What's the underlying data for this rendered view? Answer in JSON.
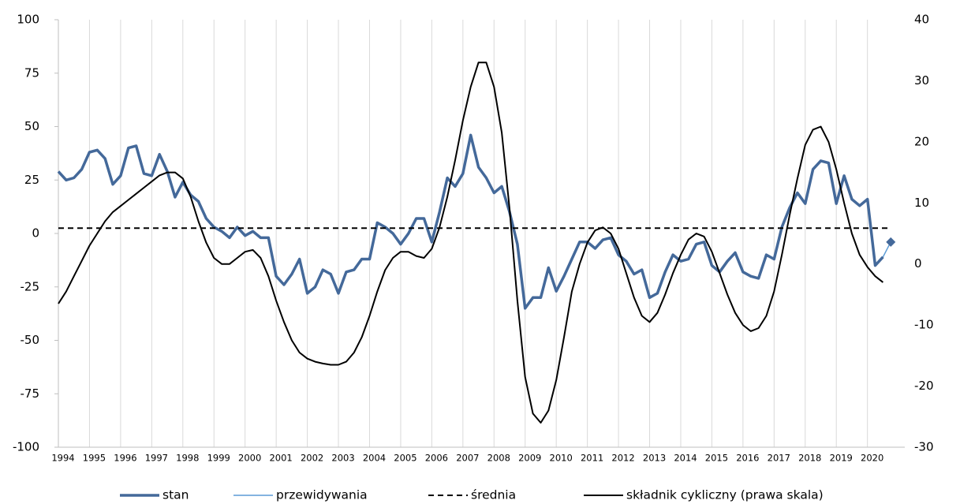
{
  "chart_data": {
    "type": "line",
    "x": [
      1994,
      1994.25,
      1994.5,
      1994.75,
      1995,
      1995.25,
      1995.5,
      1995.75,
      1996,
      1996.25,
      1996.5,
      1996.75,
      1997,
      1997.25,
      1997.5,
      1997.75,
      1998,
      1998.25,
      1998.5,
      1998.75,
      1999,
      1999.25,
      1999.5,
      1999.75,
      2000,
      2000.25,
      2000.5,
      2000.75,
      2001,
      2001.25,
      2001.5,
      2001.75,
      2002,
      2002.25,
      2002.5,
      2002.75,
      2003,
      2003.25,
      2003.5,
      2003.75,
      2004,
      2004.25,
      2004.5,
      2004.75,
      2005,
      2005.25,
      2005.5,
      2005.75,
      2006,
      2006.25,
      2006.5,
      2006.75,
      2007,
      2007.25,
      2007.5,
      2007.75,
      2008,
      2008.25,
      2008.5,
      2008.75,
      2009,
      2009.25,
      2009.5,
      2009.75,
      2010,
      2010.25,
      2010.5,
      2010.75,
      2011,
      2011.25,
      2011.5,
      2011.75,
      2012,
      2012.25,
      2012.5,
      2012.75,
      2013,
      2013.25,
      2013.5,
      2013.75,
      2014,
      2014.25,
      2014.5,
      2014.75,
      2015,
      2015.25,
      2015.5,
      2015.75,
      2016,
      2016.25,
      2016.5,
      2016.75,
      2017,
      2017.25,
      2017.5,
      2017.75,
      2018,
      2018.25,
      2018.5,
      2018.75,
      2019,
      2019.25,
      2019.5,
      2019.75,
      2020,
      2020.25,
      2020.5,
      2020.75
    ],
    "series": [
      {
        "name": "stan",
        "color": "#44699a",
        "width": 3.5,
        "axis": "y",
        "values": [
          29,
          25,
          26,
          30,
          38,
          39,
          35,
          23,
          27,
          40,
          41,
          28,
          27,
          37,
          29,
          17,
          24,
          18,
          15,
          7,
          3,
          1,
          -2,
          3,
          -1,
          1,
          -2,
          -2,
          -20,
          -24,
          -19,
          -12,
          -28,
          -25,
          -17,
          -19,
          -28,
          -18,
          -17,
          -12,
          -12,
          5,
          3,
          0,
          -5,
          0,
          7,
          7,
          -4,
          10,
          26,
          22,
          28,
          46,
          31,
          26,
          19,
          22,
          10,
          -5,
          -35,
          -30,
          -30,
          -16,
          -27,
          -20,
          -12,
          -4,
          -4,
          -7,
          -3,
          -2,
          -10,
          -13,
          -19,
          -17,
          -30,
          -28,
          -18,
          -10,
          -13,
          -12,
          -5,
          -4,
          -15,
          -18,
          -13,
          -9,
          -18,
          -20,
          -21,
          -10,
          -12,
          3,
          12,
          19,
          14,
          30,
          34,
          33,
          14,
          27,
          16,
          13,
          16,
          -15,
          -11,
          null
        ]
      },
      {
        "name": "przewidywania",
        "color": "#5b9bd5",
        "width": 1.5,
        "axis": "y",
        "marker": "diamond",
        "values": [
          null,
          null,
          null,
          null,
          null,
          null,
          null,
          null,
          null,
          null,
          null,
          null,
          null,
          null,
          null,
          null,
          null,
          null,
          null,
          null,
          null,
          null,
          null,
          null,
          null,
          null,
          null,
          null,
          null,
          null,
          null,
          null,
          null,
          null,
          null,
          null,
          null,
          null,
          null,
          null,
          null,
          null,
          null,
          null,
          null,
          null,
          null,
          null,
          null,
          null,
          null,
          null,
          null,
          null,
          null,
          null,
          null,
          null,
          null,
          null,
          null,
          null,
          null,
          null,
          null,
          null,
          null,
          null,
          null,
          null,
          null,
          null,
          null,
          null,
          null,
          null,
          null,
          null,
          null,
          null,
          null,
          null,
          null,
          null,
          null,
          null,
          null,
          null,
          null,
          null,
          null,
          null,
          null,
          null,
          null,
          null,
          null,
          null,
          null,
          null,
          null,
          null,
          null,
          null,
          null,
          null,
          -11,
          -4
        ]
      },
      {
        "name": "średnia",
        "color": "#000000",
        "width": 2,
        "axis": "y",
        "dashed": true,
        "values": [
          2.5,
          2.5,
          2.5,
          2.5,
          2.5,
          2.5,
          2.5,
          2.5,
          2.5,
          2.5,
          2.5,
          2.5,
          2.5,
          2.5,
          2.5,
          2.5,
          2.5,
          2.5,
          2.5,
          2.5,
          2.5,
          2.5,
          2.5,
          2.5,
          2.5,
          2.5,
          2.5,
          2.5,
          2.5,
          2.5,
          2.5,
          2.5,
          2.5,
          2.5,
          2.5,
          2.5,
          2.5,
          2.5,
          2.5,
          2.5,
          2.5,
          2.5,
          2.5,
          2.5,
          2.5,
          2.5,
          2.5,
          2.5,
          2.5,
          2.5,
          2.5,
          2.5,
          2.5,
          2.5,
          2.5,
          2.5,
          2.5,
          2.5,
          2.5,
          2.5,
          2.5,
          2.5,
          2.5,
          2.5,
          2.5,
          2.5,
          2.5,
          2.5,
          2.5,
          2.5,
          2.5,
          2.5,
          2.5,
          2.5,
          2.5,
          2.5,
          2.5,
          2.5,
          2.5,
          2.5,
          2.5,
          2.5,
          2.5,
          2.5,
          2.5,
          2.5,
          2.5,
          2.5,
          2.5,
          2.5,
          2.5,
          2.5,
          2.5,
          2.5,
          2.5,
          2.5,
          2.5,
          2.5,
          2.5,
          2.5,
          2.5,
          2.5,
          2.5,
          2.5,
          2.5,
          2.5,
          2.5,
          2.5
        ]
      },
      {
        "name": "składnik cykliczny (prawa skala)",
        "color": "#000000",
        "width": 2,
        "axis": "y2",
        "values": [
          -6.5,
          -4.5,
          -2,
          0.5,
          3,
          5,
          7,
          8.5,
          9.5,
          10.5,
          11.5,
          12.5,
          13.5,
          14.5,
          15,
          15,
          14,
          11,
          7,
          3.5,
          1,
          0,
          0,
          1,
          2,
          2.3,
          1,
          -2,
          -6,
          -9.5,
          -12.5,
          -14.5,
          -15.5,
          -16,
          -16.3,
          -16.5,
          -16.5,
          -16,
          -14.5,
          -12,
          -8.5,
          -4.5,
          -1,
          1,
          2,
          2,
          1.3,
          1,
          2.5,
          6,
          11,
          17,
          23.5,
          29,
          33,
          33,
          29,
          21.5,
          9,
          -6,
          -18.5,
          -24.5,
          -26,
          -24,
          -19,
          -12,
          -4.5,
          0,
          3.5,
          5.5,
          6,
          5,
          2.5,
          -1.5,
          -5.5,
          -8.5,
          -9.5,
          -8,
          -5,
          -1.5,
          1.5,
          4,
          5,
          4.5,
          2,
          -1.5,
          -5,
          -8,
          -10,
          -11,
          -10.5,
          -8.5,
          -4.5,
          1.5,
          8,
          14,
          19.5,
          22,
          22.5,
          20,
          15.5,
          10,
          5,
          1.5,
          -0.5,
          -2,
          -3,
          null
        ]
      }
    ],
    "xlim": [
      1994,
      2021.2
    ],
    "xticks": [
      1994,
      1995,
      1996,
      1997,
      1998,
      1999,
      2000,
      2001,
      2002,
      2003,
      2004,
      2005,
      2006,
      2007,
      2008,
      2009,
      2010,
      2011,
      2012,
      2013,
      2014,
      2015,
      2016,
      2017,
      2018,
      2019,
      2020
    ],
    "ylim": [
      -100,
      100
    ],
    "yticks": [
      -100,
      -75,
      -50,
      -25,
      0,
      25,
      50,
      75,
      100
    ],
    "y2lim": [
      -30,
      40
    ],
    "y2ticks": [
      -30,
      -20,
      -10,
      0,
      10,
      20,
      30,
      40
    ],
    "grid": "x",
    "legend": "bottom"
  }
}
